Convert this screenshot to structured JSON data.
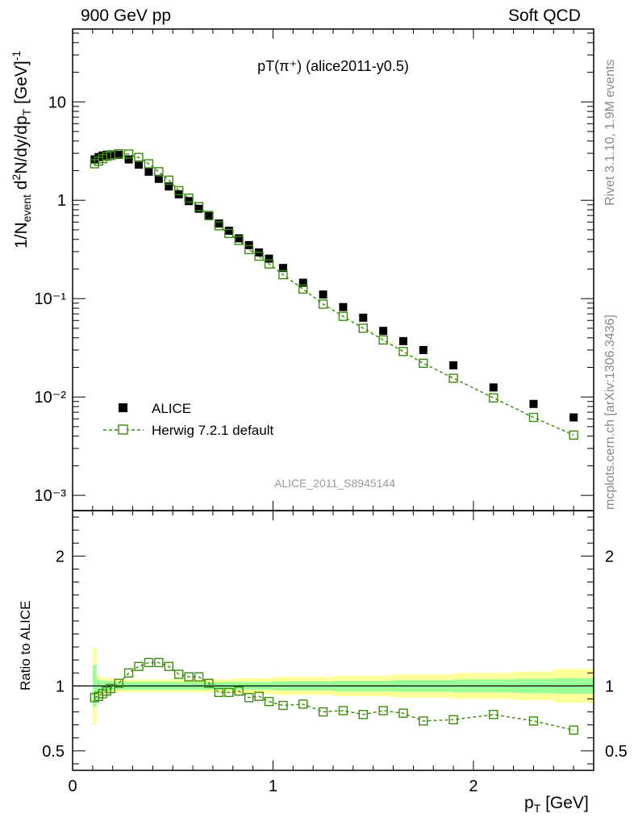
{
  "header": {
    "left": "900 GeV pp",
    "right": "Soft QCD"
  },
  "side_labels": {
    "rivet": "Rivet 3.1.10,  1.9M events",
    "mcplots": "mcplots.cern.ch [arXiv:1306.3436]"
  },
  "chart_data": {
    "type": "scatter",
    "title": "pT(π⁺) (alice2011-y0.5)",
    "watermark": "ALICE_2011_S8945144",
    "xlabel": "p_T [GeV]",
    "xlim": [
      0,
      2.6
    ],
    "x_ticks": [
      0,
      1,
      2
    ],
    "main": {
      "ylabel": "1/N_event d²N/dy/dp_T [GeV]⁻¹",
      "yscale": "log",
      "ylim": [
        0.0007,
        55
      ],
      "y_tick_labels": [
        "10",
        "1",
        "10⁻¹",
        "10⁻²",
        "10⁻³"
      ],
      "y_tick_values": [
        10,
        1,
        0.1,
        0.01,
        0.001
      ]
    },
    "ratio": {
      "ylabel": "Ratio to ALICE",
      "ylim": [
        0.35,
        2.35
      ],
      "y_ticks": [
        0.5,
        1,
        2
      ],
      "reference_line": 1
    },
    "x": [
      0.11,
      0.13,
      0.15,
      0.17,
      0.19,
      0.23,
      0.28,
      0.33,
      0.38,
      0.43,
      0.48,
      0.53,
      0.58,
      0.63,
      0.68,
      0.73,
      0.78,
      0.83,
      0.88,
      0.93,
      0.98,
      1.05,
      1.15,
      1.25,
      1.35,
      1.45,
      1.55,
      1.65,
      1.75,
      1.9,
      2.1,
      2.3,
      2.5
    ],
    "legend_position": "lower-left",
    "series": [
      {
        "name": "ALICE",
        "marker": "filled-square",
        "color": "#000000",
        "values": [
          2.6,
          2.75,
          2.85,
          2.9,
          2.92,
          2.9,
          2.6,
          2.3,
          1.95,
          1.65,
          1.38,
          1.15,
          0.98,
          0.82,
          0.69,
          0.58,
          0.49,
          0.41,
          0.35,
          0.295,
          0.255,
          0.205,
          0.145,
          0.11,
          0.082,
          0.064,
          0.047,
          0.037,
          0.03,
          0.021,
          0.0125,
          0.0085,
          0.0062
        ]
      },
      {
        "name": "Herwig 7.2.1 default",
        "marker": "open-square",
        "line": "dashed",
        "color": "#3a8a0e",
        "values": [
          2.35,
          2.5,
          2.65,
          2.8,
          2.85,
          2.97,
          2.95,
          2.72,
          2.35,
          1.95,
          1.6,
          1.25,
          1.05,
          0.86,
          0.7,
          0.55,
          0.46,
          0.39,
          0.315,
          0.27,
          0.225,
          0.175,
          0.125,
          0.088,
          0.066,
          0.05,
          0.038,
          0.029,
          0.022,
          0.0155,
          0.0098,
          0.0062,
          0.0041
        ],
        "ratio": [
          0.91,
          0.92,
          0.94,
          0.96,
          0.98,
          1.02,
          1.1,
          1.15,
          1.18,
          1.18,
          1.15,
          1.09,
          1.07,
          1.07,
          1.02,
          0.95,
          0.95,
          0.96,
          0.91,
          0.92,
          0.88,
          0.85,
          0.86,
          0.8,
          0.81,
          0.78,
          0.81,
          0.79,
          0.73,
          0.74,
          0.78,
          0.73,
          0.66
        ]
      }
    ],
    "uncertainty_bands": {
      "colors": {
        "outer": "#ffff99",
        "inner": "#99ff99"
      },
      "x_edges": [
        0.1,
        0.12,
        0.14,
        0.2,
        0.3,
        0.5,
        0.8,
        1.0,
        1.3,
        1.6,
        1.9,
        2.2,
        2.4,
        2.6
      ],
      "outer_half_width": [
        0.3,
        0.08,
        0.06,
        0.05,
        0.05,
        0.05,
        0.06,
        0.07,
        0.08,
        0.09,
        0.1,
        0.11,
        0.13
      ],
      "inner_half_width": [
        0.16,
        0.05,
        0.04,
        0.03,
        0.03,
        0.03,
        0.03,
        0.035,
        0.04,
        0.045,
        0.05,
        0.055,
        0.06
      ]
    }
  }
}
